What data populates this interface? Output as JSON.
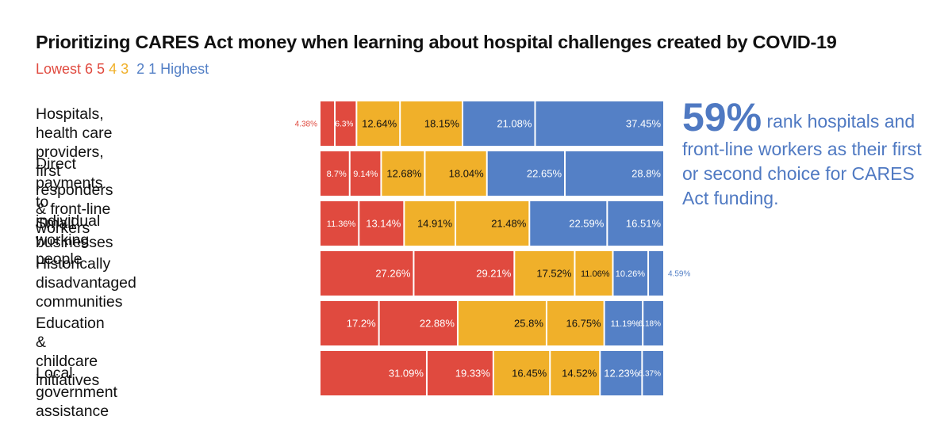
{
  "title": "Prioritizing CARES Act money when learning about hospital challenges created by COVID-19",
  "legend": [
    {
      "text": "Lowest 6 5",
      "color": "#e04a3f"
    },
    {
      "text": " 4 3",
      "color": "#f0b02a"
    },
    {
      "text": "  2 1 Highest",
      "color": "#5480c6"
    }
  ],
  "colors": {
    "red": "#e04a3f",
    "yellow": "#f0b02a",
    "blue": "#5480c6",
    "callout": "#4f79c2"
  },
  "callout": {
    "big": "59%",
    "rest": " rank hospitals and front-line workers as their first or second choice for CARES Act funding."
  },
  "chart_data": {
    "type": "bar",
    "orientation": "horizontal",
    "stacked": true,
    "normalized": true,
    "categories": [
      "Hospitals, health care providers,\nfirst responders & front-line workers",
      "Direct payments to individual\nworking people",
      "Small businesses",
      "Historically disadvantaged\ncommunities",
      "Education & childcare initiatives",
      "Local government assistance"
    ],
    "series": [
      {
        "name": "6",
        "color": "#e04a3f",
        "values": [
          4.38,
          8.7,
          11.36,
          27.26,
          17.2,
          31.09
        ],
        "labels": [
          "4.38%",
          "8.7%",
          "11.36%",
          "27.26%",
          "17.2%",
          "31.09%"
        ]
      },
      {
        "name": "5",
        "color": "#e04a3f",
        "values": [
          6.3,
          9.14,
          13.14,
          29.21,
          22.88,
          19.33
        ],
        "labels": [
          "6.3%",
          "9.14%",
          "13.14%",
          "29.21%",
          "22.88%",
          "19.33%"
        ]
      },
      {
        "name": "4",
        "color": "#f0b02a",
        "values": [
          12.64,
          12.68,
          14.91,
          17.52,
          25.8,
          16.45
        ],
        "labels": [
          "12.64%",
          "12.68%",
          "14.91%",
          "17.52%",
          "25.8%",
          "16.45%"
        ]
      },
      {
        "name": "3",
        "color": "#f0b02a",
        "values": [
          18.15,
          18.04,
          21.48,
          11.06,
          16.75,
          14.52
        ],
        "labels": [
          "18.15%",
          "18.04%",
          "21.48%",
          "11.06%",
          "16.75%",
          "14.52%"
        ]
      },
      {
        "name": "2",
        "color": "#5480c6",
        "values": [
          21.08,
          22.65,
          22.59,
          10.26,
          11.19,
          12.23
        ],
        "labels": [
          "21.08%",
          "22.65%",
          "22.59%",
          "10.26%",
          "11.19%",
          "12.23%"
        ]
      },
      {
        "name": "1",
        "color": "#5480c6",
        "values": [
          37.45,
          28.8,
          16.51,
          4.59,
          6.18,
          6.37
        ],
        "labels": [
          "37.45%",
          "28.8%",
          "16.51%",
          "4.59%",
          "6.18%",
          "6.37%"
        ]
      }
    ],
    "xlim": [
      0,
      100
    ],
    "grid": false,
    "legend": "top-left"
  }
}
